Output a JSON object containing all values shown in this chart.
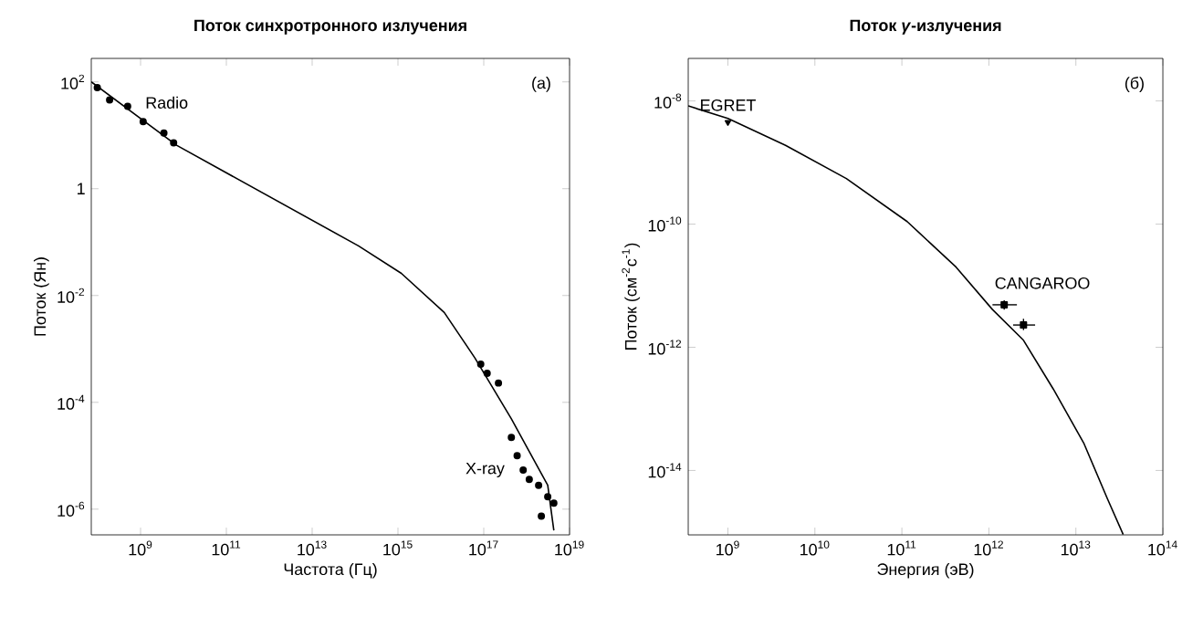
{
  "chart_data": [
    {
      "type": "line",
      "title": "Поток синхротронного излучения",
      "xlabel": "Частота  (Гц)",
      "ylabel": "Поток  (Ян)",
      "log": "xy",
      "grid": false,
      "xlim": [
        71000000.0,
        1e+19
      ],
      "ylim": [
        3.3e-07,
        275
      ],
      "xticks": [
        {
          "value": 1000000000.0,
          "label": "10$^{9}$"
        },
        {
          "value": 100000000000.0,
          "label": "10$^{11}$"
        },
        {
          "value": 10000000000000.0,
          "label": "10$^{13}$"
        },
        {
          "value": 1000000000000000.0,
          "label": "10$^{15}$"
        },
        {
          "value": 1e+17,
          "label": "10$^{17}$"
        },
        {
          "value": 1e+19,
          "label": "10$^{19}$"
        }
      ],
      "yticks": [
        {
          "value": 1e-06,
          "label": "10$^{-6}$"
        },
        {
          "value": 0.0001,
          "label": "10$^{-4}$"
        },
        {
          "value": 0.01,
          "label": "10$^{-2}$"
        },
        1,
        {
          "value": 100,
          "label": "10$^{2}$"
        }
      ],
      "annotations": [
        "(a)"
      ],
      "series": [
        {
          "color": "#000000",
          "marker": "none",
          "line_style": "solid",
          "x": [
            71000000.0,
            6900000000.0,
            120000000000000.0,
            1200000000000000.0,
            1.2e+16,
            6.2e+16,
            4.4e+17,
            3.1e+18,
            4.3e+18
          ],
          "values": [
            100,
            6.5,
            0.085,
            0.026,
            0.0048,
            0.00068,
            4.9e-05,
            2.8e-06,
            4e-07
          ]
        },
        {
          "type": "scatter",
          "name": "Radio",
          "color": "#000000",
          "marker": "circle",
          "x": [
            98000000.0,
            190000000.0,
            500000000.0,
            1150000000.0,
            3500000000.0,
            5900000000.0
          ],
          "values": [
            78,
            46,
            35,
            18,
            11,
            7.2
          ]
        },
        {
          "type": "scatter",
          "name": "X-ray",
          "color": "#000000",
          "marker": "circle",
          "x": [
            8.5e+16,
            1.2e+17,
            2.2e+17,
            4.4e+17,
            6e+17,
            8.3e+17,
            1.15e+18,
            1.9e+18,
            3.1e+18,
            4.3e+18,
            2.2e+18
          ],
          "values": [
            0.00052,
            0.00035,
            0.00023,
            2.2e-05,
            1e-05,
            5.4e-06,
            3.6e-06,
            2.8e-06,
            1.7e-06,
            1.3e-06,
            7.4e-07
          ]
        }
      ]
    },
    {
      "type": "line",
      "title": "Поток *γ*-излучения",
      "xlabel": "Энергия   (эВ)",
      "ylabel": "Поток  (см$^{-2}$с$^{-1}$)",
      "log": "xy",
      "grid": false,
      "xlim": [
        350000000.0,
        100000000000000.0
      ],
      "ylim": [
        9e-16,
        4.9e-08
      ],
      "xticks": [
        {
          "value": 1000000000.0,
          "label": "10$^{9}$"
        },
        {
          "value": 10000000000.0,
          "label": "10$^{10}$"
        },
        {
          "value": 100000000000.0,
          "label": "10$^{11}$"
        },
        {
          "value": 1000000000000.0,
          "label": "10$^{12}$"
        },
        {
          "value": 10000000000000.0,
          "label": "10$^{13}$"
        },
        {
          "value": 100000000000000.0,
          "label": "10$^{14}$"
        }
      ],
      "yticks": [
        {
          "value": 1e-14,
          "label": "10$^{-14}$"
        },
        {
          "value": 1e-12,
          "label": "10$^{-12}$"
        },
        {
          "value": 1e-10,
          "label": "10$^{-10}$"
        },
        {
          "value": 1e-08,
          "label": "10$^{-8}$"
        }
      ],
      "annotations": [
        "(б)"
      ],
      "series": [
        {
          "color": "#000000",
          "marker": "none",
          "line_style": "solid",
          "x": [
            350000000.0,
            1000000000.0,
            4600000000.0,
            23000000000.0,
            115000000000.0,
            420000000000.0,
            1100000000000.0,
            2500000000000.0,
            5500000000000.0,
            12300000000000.0,
            23000000000000.0,
            35000000000000.0
          ],
          "values": [
            8.3e-09,
            5.2e-09,
            1.9e-09,
            5.5e-10,
            1.1e-10,
            2e-11,
            4.1e-12,
            1.3e-12,
            2.1e-13,
            2.8e-14,
            3.5e-15,
            9.1e-16
          ]
        },
        {
          "type": "scatter",
          "name": "EGRET",
          "color": "#000000",
          "marker": "triangle",
          "x": [
            1000000000.0
          ],
          "values": [
            4.5e-09
          ]
        },
        {
          "type": "scatter",
          "name": "CANGAROO",
          "color": "#000000",
          "marker": "square",
          "x": [
            1500000000000.0,
            2500000000000.0
          ],
          "values": [
            4.9e-12,
            2.3e-12
          ],
          "xerrors": [
            [
              1100000000000.0,
              2100000000000.0
            ],
            [
              1900000000000.0,
              3400000000000.0
            ]
          ],
          "errors": [
            [
              4.1e-12,
              5.8e-12
            ],
            [
              1.9e-12,
              2.9e-12
            ]
          ]
        }
      ]
    }
  ]
}
